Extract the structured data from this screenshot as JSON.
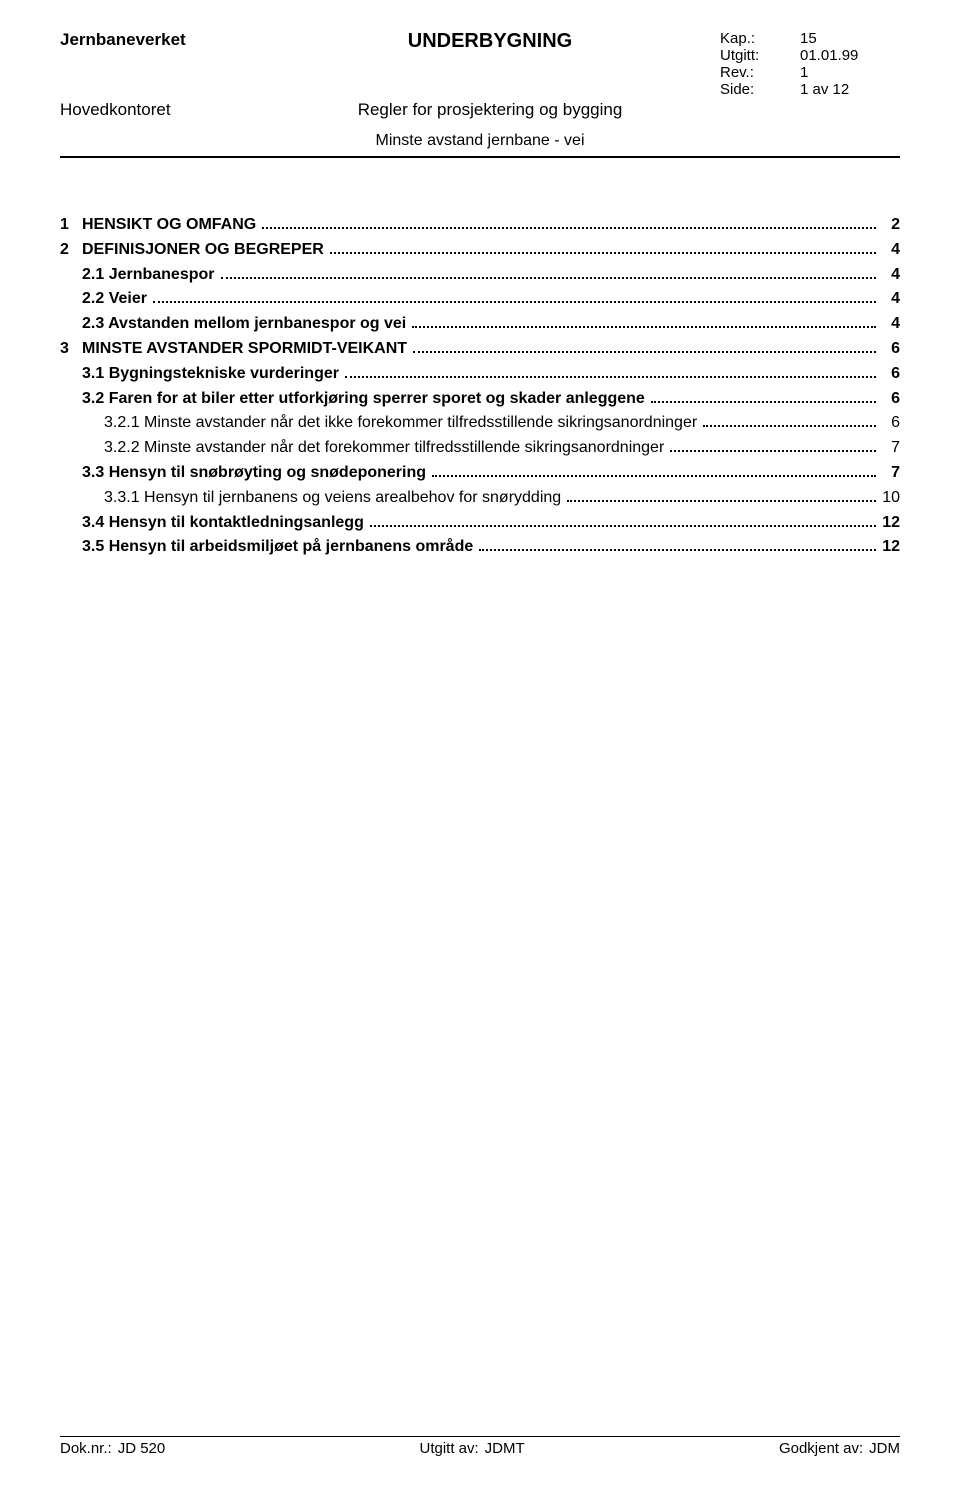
{
  "header": {
    "org": "Jernbaneverket",
    "org_sub": "Hovedkontoret",
    "title": "UNDERBYGNING",
    "subtitle": "Regler for prosjektering og bygging",
    "section": "Minste avstand jernbane - vei",
    "meta": [
      {
        "label": "Kap.:",
        "value": "15"
      },
      {
        "label": "Utgitt:",
        "value": "01.01.99"
      },
      {
        "label": "Rev.:",
        "value": "1"
      },
      {
        "label": "Side:",
        "value": "1 av 12"
      }
    ]
  },
  "toc": [
    {
      "level": 0,
      "num": "1",
      "label": "HENSIKT OG OMFANG",
      "page": "2",
      "bold": true
    },
    {
      "level": 0,
      "num": "2",
      "label": "DEFINISJONER OG BEGREPER",
      "page": "4",
      "bold": true
    },
    {
      "level": 1,
      "num": "",
      "label": "2.1 Jernbanespor",
      "page": "4",
      "bold": true
    },
    {
      "level": 1,
      "num": "",
      "label": "2.2 Veier",
      "page": "4",
      "bold": true
    },
    {
      "level": 1,
      "num": "",
      "label": "2.3 Avstanden mellom jernbanespor og vei",
      "page": "4",
      "bold": true
    },
    {
      "level": 0,
      "num": "3",
      "label": "MINSTE AVSTANDER SPORMIDT-VEIKANT",
      "page": "6",
      "bold": true
    },
    {
      "level": 1,
      "num": "",
      "label": "3.1 Bygningstekniske vurderinger",
      "page": "6",
      "bold": true
    },
    {
      "level": 1,
      "num": "",
      "label": "3.2 Faren for at biler etter utforkjøring sperrer sporet og skader anleggene",
      "page": "6",
      "bold": true
    },
    {
      "level": 2,
      "num": "",
      "label": "3.2.1  Minste avstander når det ikke forekommer tilfredsstillende sikringsanordninger",
      "page": "6",
      "bold": false
    },
    {
      "level": 2,
      "num": "",
      "label": "3.2.2  Minste avstander når det forekommer tilfredsstillende sikringsanordninger",
      "page": "7",
      "bold": false
    },
    {
      "level": 1,
      "num": "",
      "label": "3.3 Hensyn til snøbrøyting og snødeponering",
      "page": "7",
      "bold": true
    },
    {
      "level": 2,
      "num": "",
      "label": "3.3.1  Hensyn til jernbanens og veiens arealbehov for snørydding",
      "page": "10",
      "bold": false
    },
    {
      "level": 1,
      "num": "",
      "label": "3.4 Hensyn til kontaktledningsanlegg",
      "page": "12",
      "bold": true
    },
    {
      "level": 1,
      "num": "",
      "label": "3.5 Hensyn til arbeidsmiljøet på jernbanens område",
      "page": "12",
      "bold": true
    }
  ],
  "footer": {
    "dok_label": "Dok.nr.:",
    "dok_value": "JD 520",
    "utgitt_label": "Utgitt av:",
    "utgitt_value": "JDMT",
    "godkjent_label": "Godkjent av:",
    "godkjent_value": "JDM"
  }
}
